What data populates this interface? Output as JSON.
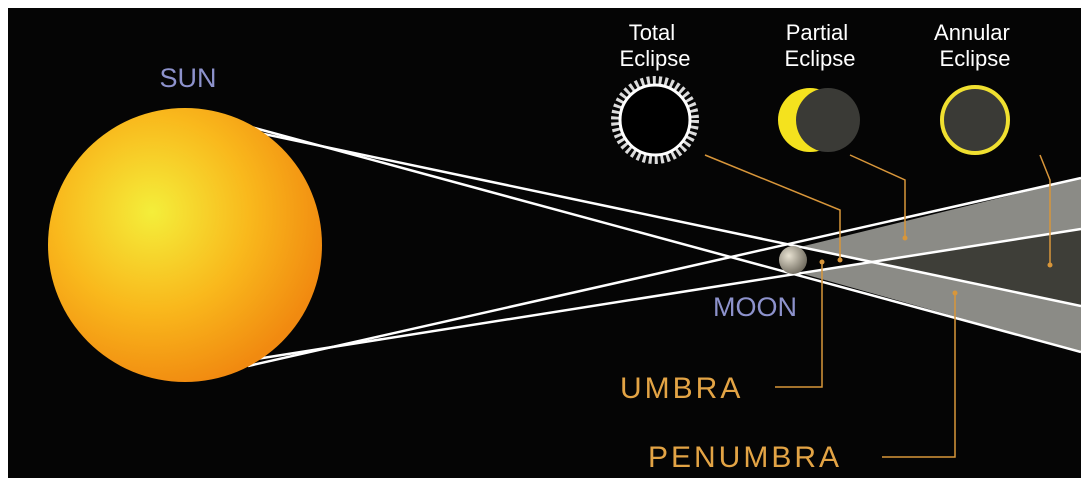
{
  "labels": {
    "sun": "SUN",
    "moon": "MOON",
    "umbra": "UMBRA",
    "penumbra": "PENUMBRA"
  },
  "eclipses": [
    {
      "lines": [
        "Total",
        "Eclipse"
      ]
    },
    {
      "lines": [
        "Partial",
        "Eclipse"
      ]
    },
    {
      "lines": [
        "Annular",
        "Eclipse"
      ]
    }
  ]
}
